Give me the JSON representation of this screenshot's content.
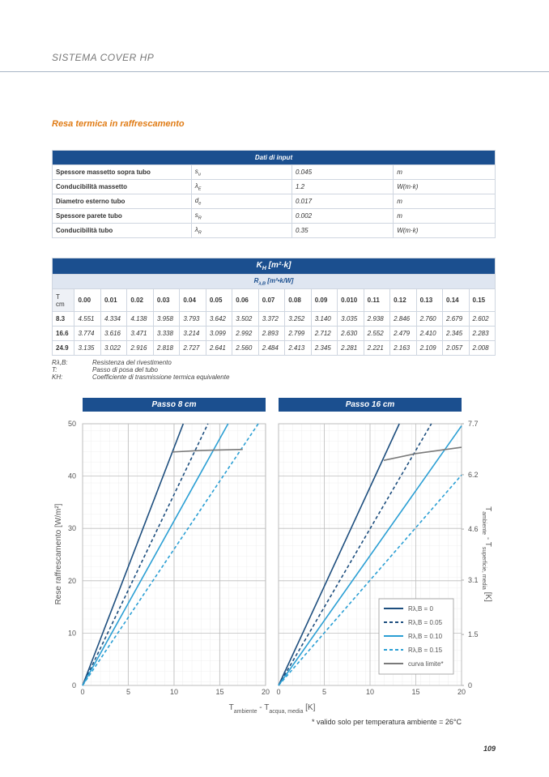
{
  "header": {
    "title": "SISTEMA COVER HP"
  },
  "section_title": "Resa termica in raffrescamento",
  "input_table": {
    "title": "Dati di input",
    "rows": [
      [
        "Spessore massetto sopra tubo",
        [
          "s",
          "u"
        ],
        "0.045",
        "m"
      ],
      [
        "Conducibilità massetto",
        [
          "λ",
          "E"
        ],
        "1.2",
        "W(m·k)"
      ],
      [
        "Diametro esterno tubo",
        [
          "d",
          "e"
        ],
        "0.017",
        "m"
      ],
      [
        "Spessore parete tubo",
        [
          "s",
          "R"
        ],
        "0.002",
        "m"
      ],
      [
        "Conducibilità tubo",
        [
          "λ",
          "R"
        ],
        "0.35",
        "W(m·k)"
      ]
    ]
  },
  "k_table": {
    "title": [
      "K",
      "H",
      " [m²·k]"
    ],
    "subtitle": [
      "R",
      "λ,B",
      " [m²•k/W]"
    ],
    "corner": [
      "T",
      "cm"
    ],
    "columns": [
      "0.00",
      "0.01",
      "0.02",
      "0.03",
      "0.04",
      "0.05",
      "0.06",
      "0.07",
      "0.08",
      "0.09",
      "0.010",
      "0.11",
      "0.12",
      "0.13",
      "0.14",
      "0.15"
    ],
    "rows": [
      [
        "8.3",
        "4.551",
        "4.334",
        "4.138",
        "3.958",
        "3.793",
        "3.642",
        "3.502",
        "3.372",
        "3.252",
        "3.140",
        "3.035",
        "2.938",
        "2.846",
        "2.760",
        "2.679",
        "2.602"
      ],
      [
        "16.6",
        "3.774",
        "3.616",
        "3.471",
        "3.338",
        "3.214",
        "3.099",
        "2.992",
        "2.893",
        "2.799",
        "2.712",
        "2.630",
        "2.552",
        "2.479",
        "2.410",
        "2.345",
        "2.283"
      ],
      [
        "24.9",
        "3.135",
        "3.022",
        "2.916",
        "2.818",
        "2.727",
        "2.641",
        "2.560",
        "2.484",
        "2.413",
        "2.345",
        "2.281",
        "2.221",
        "2.163",
        "2.109",
        "2.057",
        "2.008"
      ]
    ]
  },
  "notes": [
    {
      "key": "Rλ,B:",
      "text": "Resistenza del rivestimento"
    },
    {
      "key": "T:",
      "text": "Passo di posa del tubo"
    },
    {
      "key": "KH:",
      "text": "Coefficiente di trasmissione termica equivalente"
    }
  ],
  "chart_labels": {
    "ylabel": "Rese raffrescamento [W/m²]",
    "xlabel": [
      "T",
      "ambiente",
      " - T",
      "acqua, media",
      " [K]"
    ],
    "y2label": [
      "T",
      "ambiente",
      " - T",
      "superficie, media",
      " [K]"
    ],
    "footnote": "* valido solo per temperatura ambiente = 26°C"
  },
  "chart_data": [
    {
      "type": "line",
      "title": "Passo 8 cm",
      "xlim": [
        0,
        20
      ],
      "ylim": [
        0,
        50
      ],
      "xticks": [
        0,
        5,
        10,
        15,
        20
      ],
      "yticks": [
        0,
        10,
        20,
        30,
        40,
        50
      ],
      "grid": true,
      "series": [
        {
          "color": "#1d4e7e",
          "dashed": false,
          "x": [
            0,
            11
          ],
          "values": [
            0,
            50
          ]
        },
        {
          "color": "#1d4e7e",
          "dashed": true,
          "x": [
            0,
            13.7
          ],
          "values": [
            0,
            50
          ]
        },
        {
          "color": "#2b9fd4",
          "dashed": false,
          "x": [
            0,
            15.9
          ],
          "values": [
            0,
            50
          ]
        },
        {
          "color": "#2b9fd4",
          "dashed": true,
          "x": [
            0,
            19.2
          ],
          "values": [
            0,
            50
          ]
        },
        {
          "color": "#7a7a7a",
          "dashed": false,
          "x": [
            9.8,
            13,
            17.5
          ],
          "values": [
            44.6,
            44.9,
            45.1
          ]
        }
      ]
    },
    {
      "type": "line",
      "title": "Passo 16 cm",
      "xlim": [
        0,
        20
      ],
      "ylim": [
        0,
        50
      ],
      "xticks": [
        0,
        5,
        10,
        15,
        20
      ],
      "yticks": [
        0,
        10,
        20,
        30,
        40,
        50
      ],
      "grid": true,
      "y2lim": [
        0,
        7.7
      ],
      "y2ticks": [
        0,
        1.5,
        3.1,
        4.6,
        6.2,
        7.7
      ],
      "legend": "lower right",
      "series": [
        {
          "name": "Rλ,B = 0",
          "color": "#1d4e7e",
          "dashed": false,
          "x": [
            0,
            13.2
          ],
          "values": [
            0,
            50
          ]
        },
        {
          "name": "Rλ,B = 0.05",
          "color": "#1d4e7e",
          "dashed": true,
          "x": [
            0,
            16.7
          ],
          "values": [
            0,
            50
          ]
        },
        {
          "name": "Rλ,B = 0.10",
          "color": "#2b9fd4",
          "dashed": false,
          "x": [
            0,
            20
          ],
          "values": [
            0,
            49.6
          ]
        },
        {
          "name": "Rλ,B = 0.15",
          "color": "#2b9fd4",
          "dashed": true,
          "x": [
            0,
            20
          ],
          "values": [
            0,
            40.2
          ]
        },
        {
          "name": "curva limite*",
          "color": "#7a7a7a",
          "dashed": false,
          "x": [
            11.5,
            15,
            20
          ],
          "values": [
            43,
            44.3,
            45.5
          ]
        }
      ]
    }
  ],
  "page_number": "109"
}
